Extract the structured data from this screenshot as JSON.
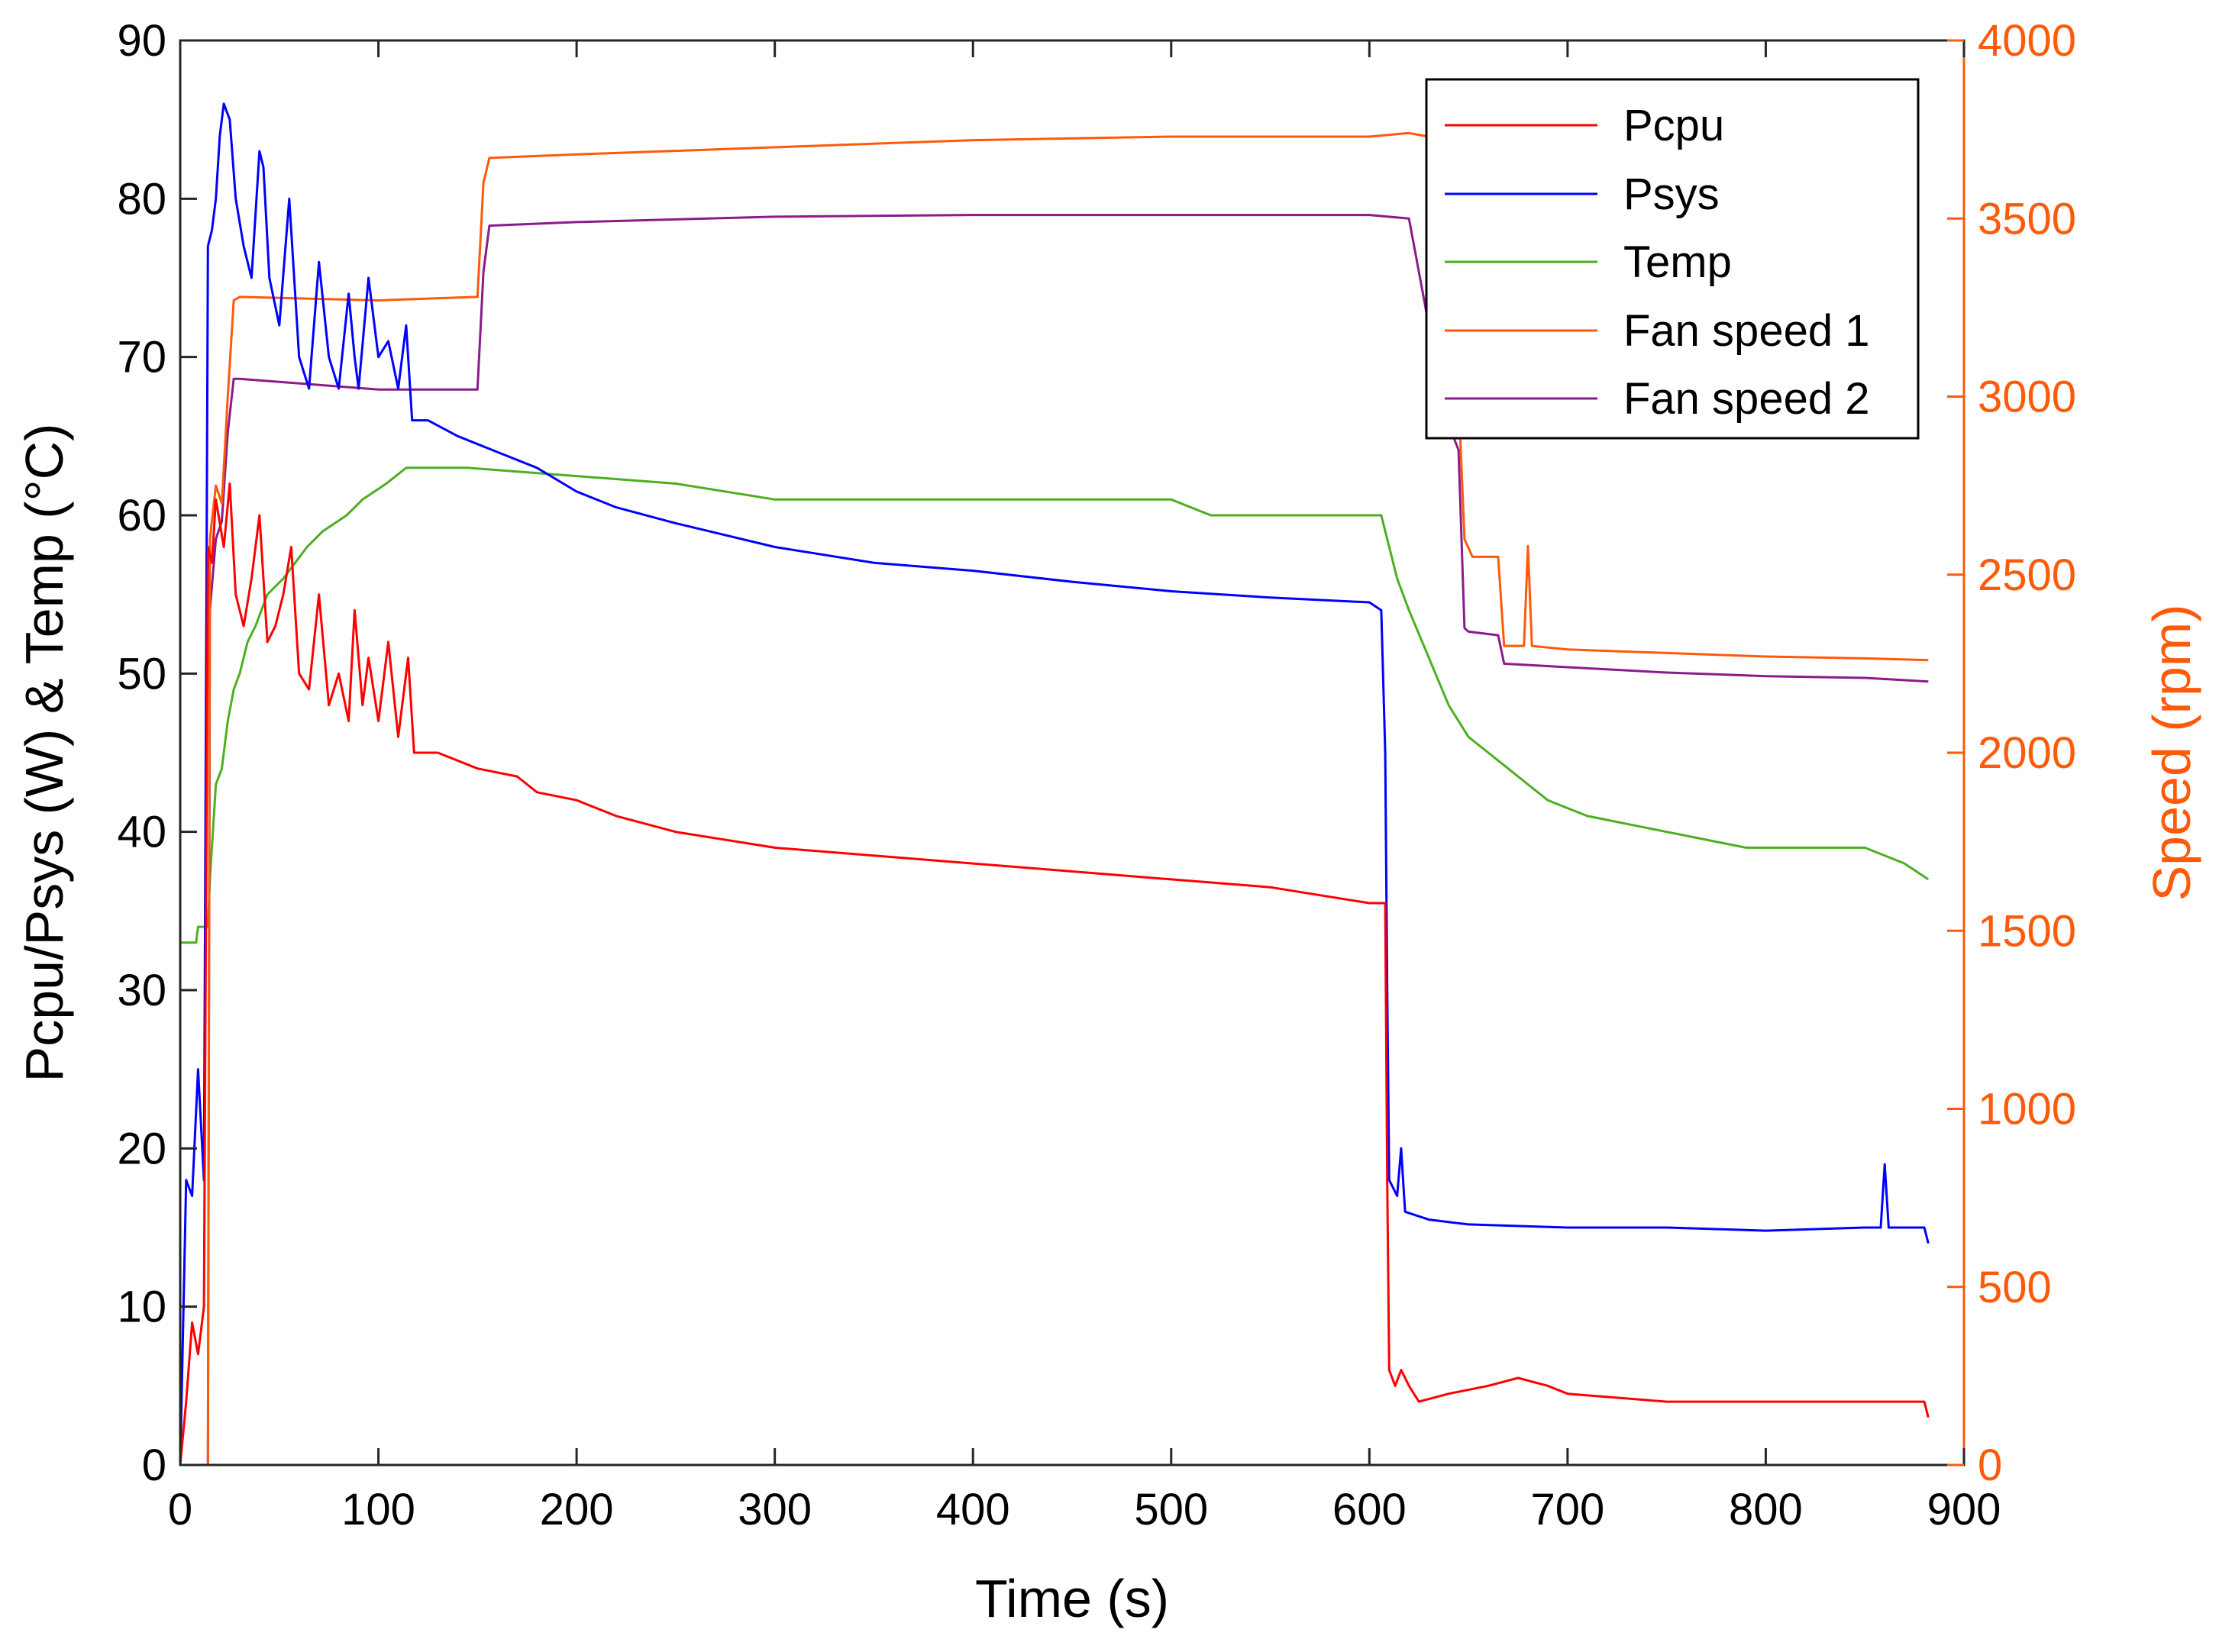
{
  "chart_data": {
    "type": "line",
    "title": "",
    "xlabel": "Time (s)",
    "ylabel_left": "Pcpu/Psys (W) & Temp (°C)",
    "ylabel_right": "Speed (rpm)",
    "xlim": [
      0,
      900
    ],
    "ylim_left": [
      0,
      90
    ],
    "ylim_right": [
      0,
      4000
    ],
    "xticks": [
      "0",
      "100",
      "200",
      "300",
      "400",
      "500",
      "600",
      "700",
      "800",
      "900"
    ],
    "yticks_left": [
      "0",
      "10",
      "20",
      "30",
      "40",
      "50",
      "60",
      "70",
      "80",
      "90"
    ],
    "yticks_right": [
      "0",
      "500",
      "1000",
      "1500",
      "2000",
      "2500",
      "3000",
      "3500",
      "4000"
    ],
    "legend_position": "top-right",
    "colors": {
      "pcpu": "#ff0000",
      "psys": "#0000ff",
      "temp": "#4caf1f",
      "fan1": "#ff5a0a",
      "fan2": "#8b1a8b",
      "right_axis": "#ff5a0a",
      "left_axis": "#000000"
    },
    "series": [
      {
        "name": "Pcpu",
        "key": "pcpu",
        "axis": "left",
        "points": [
          [
            0,
            0
          ],
          [
            3,
            4
          ],
          [
            6,
            9
          ],
          [
            9,
            7
          ],
          [
            12,
            10
          ],
          [
            14,
            58
          ],
          [
            16,
            57
          ],
          [
            18,
            61
          ],
          [
            22,
            58
          ],
          [
            25,
            62
          ],
          [
            28,
            55
          ],
          [
            32,
            53
          ],
          [
            36,
            56
          ],
          [
            40,
            60
          ],
          [
            44,
            52
          ],
          [
            48,
            53
          ],
          [
            52,
            55
          ],
          [
            56,
            58
          ],
          [
            60,
            50
          ],
          [
            65,
            49
          ],
          [
            70,
            55
          ],
          [
            75,
            48
          ],
          [
            80,
            50
          ],
          [
            85,
            47
          ],
          [
            88,
            54
          ],
          [
            92,
            48
          ],
          [
            95,
            51
          ],
          [
            100,
            47
          ],
          [
            105,
            52
          ],
          [
            110,
            46
          ],
          [
            115,
            51
          ],
          [
            118,
            45
          ],
          [
            130,
            45
          ],
          [
            150,
            44
          ],
          [
            170,
            43.5
          ],
          [
            180,
            42.5
          ],
          [
            200,
            42
          ],
          [
            220,
            41
          ],
          [
            250,
            40
          ],
          [
            300,
            39
          ],
          [
            350,
            38.5
          ],
          [
            400,
            38
          ],
          [
            450,
            37.5
          ],
          [
            500,
            37
          ],
          [
            550,
            36.5
          ],
          [
            600,
            35.5
          ],
          [
            608,
            35.5
          ],
          [
            609,
            18
          ],
          [
            610,
            6
          ],
          [
            613,
            5
          ],
          [
            616,
            6
          ],
          [
            620,
            5
          ],
          [
            625,
            4
          ],
          [
            640,
            4.5
          ],
          [
            660,
            5
          ],
          [
            675,
            5.5
          ],
          [
            690,
            5
          ],
          [
            700,
            4.5
          ],
          [
            750,
            4
          ],
          [
            800,
            4
          ],
          [
            850,
            4
          ],
          [
            880,
            4
          ],
          [
            882,
            3
          ]
        ]
      },
      {
        "name": "Psys",
        "key": "psys",
        "axis": "left",
        "points": [
          [
            0,
            0
          ],
          [
            3,
            18
          ],
          [
            6,
            17
          ],
          [
            9,
            25
          ],
          [
            12,
            18
          ],
          [
            14,
            77
          ],
          [
            16,
            78
          ],
          [
            18,
            80
          ],
          [
            20,
            84
          ],
          [
            22,
            86
          ],
          [
            25,
            85
          ],
          [
            28,
            80
          ],
          [
            32,
            77
          ],
          [
            36,
            75
          ],
          [
            40,
            83
          ],
          [
            42,
            82
          ],
          [
            45,
            75
          ],
          [
            50,
            72
          ],
          [
            55,
            80
          ],
          [
            60,
            70
          ],
          [
            65,
            68
          ],
          [
            70,
            76
          ],
          [
            75,
            70
          ],
          [
            80,
            68
          ],
          [
            85,
            74
          ],
          [
            88,
            70
          ],
          [
            90,
            68
          ],
          [
            95,
            75
          ],
          [
            100,
            70
          ],
          [
            105,
            71
          ],
          [
            110,
            68
          ],
          [
            114,
            72
          ],
          [
            117,
            66
          ],
          [
            125,
            66
          ],
          [
            140,
            65
          ],
          [
            160,
            64
          ],
          [
            180,
            63
          ],
          [
            200,
            61.5
          ],
          [
            220,
            60.5
          ],
          [
            250,
            59.5
          ],
          [
            300,
            58
          ],
          [
            350,
            57
          ],
          [
            400,
            56.5
          ],
          [
            450,
            55.8
          ],
          [
            500,
            55.2
          ],
          [
            550,
            54.8
          ],
          [
            600,
            54.5
          ],
          [
            606,
            54
          ],
          [
            608,
            45
          ],
          [
            609,
            30
          ],
          [
            610,
            18
          ],
          [
            614,
            17
          ],
          [
            616,
            20
          ],
          [
            618,
            16
          ],
          [
            630,
            15.5
          ],
          [
            650,
            15.2
          ],
          [
            700,
            15
          ],
          [
            750,
            15
          ],
          [
            800,
            14.8
          ],
          [
            850,
            15
          ],
          [
            858,
            15
          ],
          [
            860,
            19
          ],
          [
            862,
            15
          ],
          [
            875,
            15
          ],
          [
            880,
            15
          ],
          [
            882,
            14
          ]
        ]
      },
      {
        "name": "Temp",
        "key": "temp",
        "axis": "left",
        "points": [
          [
            0,
            33
          ],
          [
            8,
            33
          ],
          [
            9,
            34
          ],
          [
            14,
            34
          ],
          [
            15,
            37
          ],
          [
            18,
            43
          ],
          [
            21,
            44
          ],
          [
            24,
            47
          ],
          [
            27,
            49
          ],
          [
            30,
            50
          ],
          [
            34,
            52
          ],
          [
            38,
            53
          ],
          [
            44,
            55
          ],
          [
            52,
            56
          ],
          [
            58,
            57
          ],
          [
            64,
            58
          ],
          [
            72,
            59
          ],
          [
            84,
            60
          ],
          [
            92,
            61
          ],
          [
            104,
            62
          ],
          [
            114,
            63
          ],
          [
            145,
            63
          ],
          [
            250,
            62
          ],
          [
            300,
            61
          ],
          [
            500,
            61
          ],
          [
            520,
            60
          ],
          [
            606,
            60
          ],
          [
            610,
            58
          ],
          [
            614,
            56
          ],
          [
            620,
            54
          ],
          [
            630,
            51
          ],
          [
            640,
            48
          ],
          [
            650,
            46
          ],
          [
            660,
            45
          ],
          [
            670,
            44
          ],
          [
            680,
            43
          ],
          [
            690,
            42
          ],
          [
            700,
            41.5
          ],
          [
            710,
            41
          ],
          [
            730,
            40.5
          ],
          [
            750,
            40
          ],
          [
            770,
            39.5
          ],
          [
            790,
            39
          ],
          [
            850,
            39
          ],
          [
            870,
            38
          ],
          [
            882,
            37
          ]
        ]
      },
      {
        "name": "Fan speed 1",
        "key": "fan1",
        "axis": "right",
        "points": [
          [
            0,
            0
          ],
          [
            14,
            0
          ],
          [
            15,
            2600
          ],
          [
            18,
            2750
          ],
          [
            21,
            2700
          ],
          [
            24,
            3000
          ],
          [
            27,
            3270
          ],
          [
            30,
            3280
          ],
          [
            100,
            3270
          ],
          [
            150,
            3280
          ],
          [
            153,
            3600
          ],
          [
            156,
            3670
          ],
          [
            200,
            3680
          ],
          [
            300,
            3700
          ],
          [
            400,
            3720
          ],
          [
            500,
            3730
          ],
          [
            600,
            3730
          ],
          [
            620,
            3740
          ],
          [
            630,
            3730
          ],
          [
            638,
            3100
          ],
          [
            645,
            3000
          ],
          [
            648,
            2600
          ],
          [
            652,
            2550
          ],
          [
            665,
            2550
          ],
          [
            668,
            2300
          ],
          [
            678,
            2300
          ],
          [
            680,
            2580
          ],
          [
            682,
            2300
          ],
          [
            700,
            2290
          ],
          [
            750,
            2280
          ],
          [
            800,
            2270
          ],
          [
            850,
            2265
          ],
          [
            882,
            2260
          ]
        ]
      },
      {
        "name": "Fan speed 2",
        "key": "fan2",
        "axis": "right",
        "points": [
          [
            0,
            0
          ],
          [
            14,
            0
          ],
          [
            15,
            2400
          ],
          [
            18,
            2600
          ],
          [
            21,
            2650
          ],
          [
            24,
            2900
          ],
          [
            27,
            3050
          ],
          [
            30,
            3050
          ],
          [
            100,
            3020
          ],
          [
            150,
            3020
          ],
          [
            153,
            3350
          ],
          [
            156,
            3480
          ],
          [
            200,
            3490
          ],
          [
            300,
            3505
          ],
          [
            400,
            3510
          ],
          [
            500,
            3510
          ],
          [
            600,
            3510
          ],
          [
            620,
            3500
          ],
          [
            630,
            3200
          ],
          [
            638,
            2950
          ],
          [
            645,
            2850
          ],
          [
            648,
            2350
          ],
          [
            650,
            2340
          ],
          [
            665,
            2330
          ],
          [
            668,
            2250
          ],
          [
            700,
            2240
          ],
          [
            750,
            2225
          ],
          [
            800,
            2215
          ],
          [
            850,
            2210
          ],
          [
            882,
            2200
          ]
        ]
      }
    ]
  }
}
